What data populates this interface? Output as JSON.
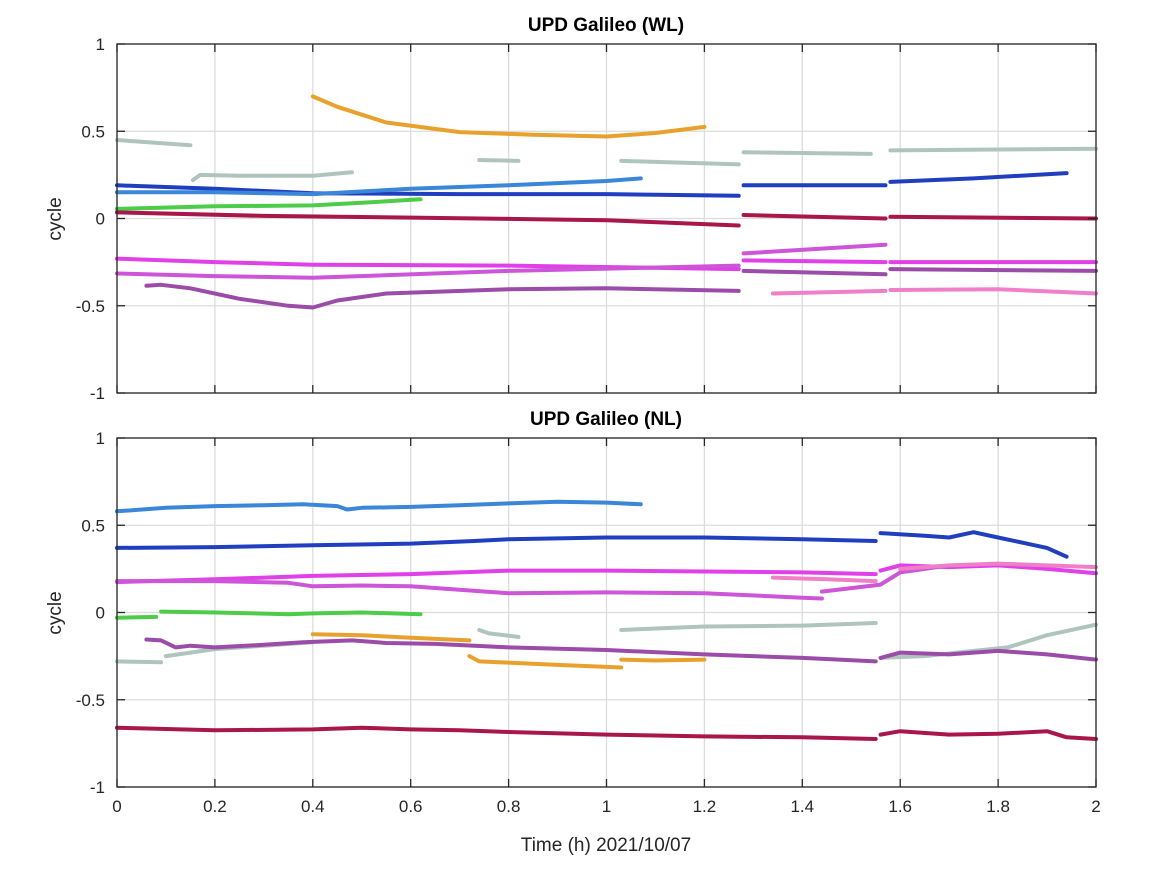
{
  "figure": {
    "xlabel": "Time (h) 2021/10/07"
  },
  "colors": {
    "gray": "#b0c4be",
    "royal_blue": "#1f3fbf",
    "sky_blue": "#3a86d8",
    "green": "#4ccc48",
    "crimson": "#a8164a",
    "magenta": "#e040e8",
    "violet_pink": "#cc55d8",
    "purple": "#9b4ba8",
    "orange": "#e8a12c",
    "pink": "#ef80c8"
  },
  "chart_data": [
    {
      "type": "line",
      "title": "UPD Galileo (WL)",
      "xlabel": "",
      "ylabel": "cycle",
      "xlim": [
        0,
        2
      ],
      "ylim": [
        -1,
        1
      ],
      "xticks": [
        "0",
        "0.2",
        "0.4",
        "0.6",
        "0.8",
        "1",
        "1.2",
        "1.4",
        "1.6",
        "1.8",
        "2"
      ],
      "yticks": [
        "-1",
        "-0.5",
        "0",
        "0.5",
        "1"
      ],
      "grid": true,
      "series": [
        {
          "color": "gray",
          "x": [
            0,
            0.15
          ],
          "y": [
            0.45,
            0.42
          ]
        },
        {
          "color": "gray",
          "x": [
            0.155,
            0.17,
            0.25,
            0.4,
            0.48
          ],
          "y": [
            0.22,
            0.25,
            0.245,
            0.245,
            0.265
          ]
        },
        {
          "color": "gray",
          "x": [
            0.74,
            0.82
          ],
          "y": [
            0.335,
            0.33
          ]
        },
        {
          "color": "gray",
          "x": [
            1.03,
            1.27
          ],
          "y": [
            0.33,
            0.31
          ]
        },
        {
          "color": "gray",
          "x": [
            1.28,
            1.54
          ],
          "y": [
            0.38,
            0.37
          ]
        },
        {
          "color": "gray",
          "x": [
            1.58,
            2.0
          ],
          "y": [
            0.39,
            0.4
          ]
        },
        {
          "color": "royal_blue",
          "x": [
            0,
            0.2,
            0.4,
            0.7,
            1.0,
            1.27
          ],
          "y": [
            0.19,
            0.17,
            0.145,
            0.14,
            0.14,
            0.13
          ]
        },
        {
          "color": "royal_blue",
          "x": [
            1.28,
            1.57
          ],
          "y": [
            0.19,
            0.19
          ]
        },
        {
          "color": "royal_blue",
          "x": [
            1.58,
            1.75,
            1.94
          ],
          "y": [
            0.21,
            0.23,
            0.26
          ]
        },
        {
          "color": "sky_blue",
          "x": [
            0,
            0.2,
            0.4,
            0.6,
            0.8,
            1.0,
            1.07
          ],
          "y": [
            0.15,
            0.15,
            0.14,
            0.17,
            0.19,
            0.215,
            0.23
          ]
        },
        {
          "color": "green",
          "x": [
            0,
            0.2,
            0.4,
            0.5,
            0.62
          ],
          "y": [
            0.055,
            0.07,
            0.075,
            0.09,
            0.11
          ]
        },
        {
          "color": "crimson",
          "x": [
            0,
            0.3,
            0.6,
            1.0,
            1.27
          ],
          "y": [
            0.035,
            0.015,
            0.005,
            -0.01,
            -0.04
          ]
        },
        {
          "color": "crimson",
          "x": [
            1.28,
            1.57
          ],
          "y": [
            0.02,
            0.0
          ]
        },
        {
          "color": "crimson",
          "x": [
            1.58,
            2.0
          ],
          "y": [
            0.01,
            0.0
          ]
        },
        {
          "color": "magenta",
          "x": [
            0,
            0.2,
            0.4,
            0.8,
            1.27
          ],
          "y": [
            -0.23,
            -0.25,
            -0.265,
            -0.27,
            -0.29
          ]
        },
        {
          "color": "magenta",
          "x": [
            1.28,
            1.57
          ],
          "y": [
            -0.24,
            -0.25
          ]
        },
        {
          "color": "magenta",
          "x": [
            1.58,
            2.0
          ],
          "y": [
            -0.25,
            -0.25
          ]
        },
        {
          "color": "violet_pink",
          "x": [
            0,
            0.2,
            0.4,
            0.8,
            1.27
          ],
          "y": [
            -0.315,
            -0.33,
            -0.34,
            -0.3,
            -0.27
          ]
        },
        {
          "color": "violet_pink",
          "x": [
            1.28,
            1.57
          ],
          "y": [
            -0.2,
            -0.15
          ]
        },
        {
          "color": "purple",
          "x": [
            0.06,
            0.09,
            0.15,
            0.25,
            0.35,
            0.4,
            0.45,
            0.55,
            0.8,
            1.0,
            1.27
          ],
          "y": [
            -0.385,
            -0.38,
            -0.4,
            -0.46,
            -0.5,
            -0.51,
            -0.47,
            -0.43,
            -0.405,
            -0.4,
            -0.415
          ]
        },
        {
          "color": "purple",
          "x": [
            1.28,
            1.57
          ],
          "y": [
            -0.3,
            -0.32
          ]
        },
        {
          "color": "purple",
          "x": [
            1.58,
            2.0
          ],
          "y": [
            -0.29,
            -0.3
          ]
        },
        {
          "color": "orange",
          "x": [
            0.4,
            0.45,
            0.55,
            0.7,
            0.85,
            1.0,
            1.1,
            1.2
          ],
          "y": [
            0.7,
            0.64,
            0.55,
            0.495,
            0.48,
            0.47,
            0.49,
            0.525
          ]
        },
        {
          "color": "pink",
          "x": [
            1.34,
            1.57
          ],
          "y": [
            -0.43,
            -0.415
          ]
        },
        {
          "color": "pink",
          "x": [
            1.58,
            1.8,
            2.0
          ],
          "y": [
            -0.41,
            -0.405,
            -0.43
          ]
        }
      ]
    },
    {
      "type": "line",
      "title": "UPD Galileo (NL)",
      "xlabel": "Time (h) 2021/10/07",
      "ylabel": "cycle",
      "xlim": [
        0,
        2
      ],
      "ylim": [
        -1,
        1
      ],
      "xticks": [
        "0",
        "0.2",
        "0.4",
        "0.6",
        "0.8",
        "1",
        "1.2",
        "1.4",
        "1.6",
        "1.8",
        "2"
      ],
      "yticks": [
        "-1",
        "-0.5",
        "0",
        "0.5",
        "1"
      ],
      "grid": true,
      "series": [
        {
          "color": "sky_blue",
          "x": [
            0,
            0.1,
            0.2,
            0.3,
            0.38,
            0.45,
            0.47,
            0.5,
            0.6,
            0.7,
            0.8,
            0.9,
            1.0,
            1.07
          ],
          "y": [
            0.58,
            0.6,
            0.61,
            0.615,
            0.62,
            0.61,
            0.59,
            0.6,
            0.605,
            0.615,
            0.625,
            0.635,
            0.63,
            0.62
          ]
        },
        {
          "color": "royal_blue",
          "x": [
            0,
            0.2,
            0.4,
            0.6,
            0.73,
            0.8,
            1.0,
            1.2,
            1.4,
            1.55
          ],
          "y": [
            0.37,
            0.375,
            0.385,
            0.395,
            0.41,
            0.42,
            0.43,
            0.43,
            0.42,
            0.41
          ]
        },
        {
          "color": "royal_blue",
          "x": [
            1.56,
            1.65,
            1.7,
            1.75,
            1.8,
            1.85,
            1.9,
            1.94
          ],
          "y": [
            0.455,
            0.44,
            0.43,
            0.46,
            0.43,
            0.4,
            0.37,
            0.32
          ]
        },
        {
          "color": "magenta",
          "x": [
            0,
            0.2,
            0.4,
            0.6,
            0.8,
            1.0,
            1.2,
            1.4,
            1.55
          ],
          "y": [
            0.175,
            0.19,
            0.21,
            0.22,
            0.24,
            0.24,
            0.235,
            0.23,
            0.22
          ]
        },
        {
          "color": "magenta",
          "x": [
            1.56,
            1.6,
            1.7,
            1.8,
            1.9,
            2.0
          ],
          "y": [
            0.24,
            0.27,
            0.26,
            0.27,
            0.25,
            0.225
          ]
        },
        {
          "color": "violet_pink",
          "x": [
            0,
            0.2,
            0.35,
            0.4,
            0.5,
            0.6,
            0.7,
            0.8,
            1.0,
            1.2,
            1.4,
            1.44
          ],
          "y": [
            0.18,
            0.18,
            0.17,
            0.15,
            0.155,
            0.15,
            0.13,
            0.11,
            0.115,
            0.11,
            0.085,
            0.08
          ]
        },
        {
          "color": "violet_pink",
          "x": [
            1.44,
            1.5,
            1.56,
            1.6,
            1.7
          ],
          "y": [
            0.12,
            0.14,
            0.16,
            0.23,
            0.27
          ]
        },
        {
          "color": "pink",
          "x": [
            1.34,
            1.45,
            1.55
          ],
          "y": [
            0.2,
            0.19,
            0.18
          ]
        },
        {
          "color": "pink",
          "x": [
            1.6,
            1.7,
            1.8,
            1.9,
            2.0
          ],
          "y": [
            0.25,
            0.27,
            0.28,
            0.27,
            0.26
          ]
        },
        {
          "color": "green",
          "x": [
            0,
            0.08
          ],
          "y": [
            -0.03,
            -0.025
          ]
        },
        {
          "color": "green",
          "x": [
            0.09,
            0.2,
            0.35,
            0.4,
            0.5,
            0.62
          ],
          "y": [
            0.005,
            0.0,
            -0.01,
            -0.005,
            0.0,
            -0.01
          ]
        },
        {
          "color": "gray",
          "x": [
            0,
            0.09
          ],
          "y": [
            -0.28,
            -0.285
          ]
        },
        {
          "color": "gray",
          "x": [
            0.1,
            0.15,
            0.2,
            0.3,
            0.4
          ],
          "y": [
            -0.25,
            -0.23,
            -0.21,
            -0.19,
            -0.17
          ]
        },
        {
          "color": "gray",
          "x": [
            0.74,
            0.76,
            0.82
          ],
          "y": [
            -0.1,
            -0.12,
            -0.14
          ]
        },
        {
          "color": "gray",
          "x": [
            1.03,
            1.2,
            1.4,
            1.55
          ],
          "y": [
            -0.1,
            -0.08,
            -0.075,
            -0.06
          ]
        },
        {
          "color": "gray",
          "x": [
            1.56,
            1.65,
            1.75,
            1.82,
            1.9,
            2.0
          ],
          "y": [
            -0.26,
            -0.25,
            -0.22,
            -0.2,
            -0.13,
            -0.07
          ]
        },
        {
          "color": "purple",
          "x": [
            0.06,
            0.09,
            0.12,
            0.15,
            0.2,
            0.3,
            0.38,
            0.48,
            0.55,
            0.65,
            0.8,
            1.0,
            1.2,
            1.4,
            1.55
          ],
          "y": [
            -0.155,
            -0.16,
            -0.2,
            -0.19,
            -0.2,
            -0.185,
            -0.17,
            -0.16,
            -0.175,
            -0.18,
            -0.2,
            -0.215,
            -0.24,
            -0.26,
            -0.28
          ]
        },
        {
          "color": "purple",
          "x": [
            1.56,
            1.6,
            1.7,
            1.8,
            1.9,
            2.0
          ],
          "y": [
            -0.26,
            -0.23,
            -0.24,
            -0.22,
            -0.24,
            -0.27
          ]
        },
        {
          "color": "orange",
          "x": [
            0.4,
            0.5,
            0.6,
            0.72
          ],
          "y": [
            -0.125,
            -0.13,
            -0.145,
            -0.16
          ]
        },
        {
          "color": "orange",
          "x": [
            0.72,
            0.74,
            0.78,
            0.9,
            1.03
          ],
          "y": [
            -0.25,
            -0.28,
            -0.285,
            -0.3,
            -0.315
          ]
        },
        {
          "color": "orange",
          "x": [
            1.03,
            1.1,
            1.2
          ],
          "y": [
            -0.27,
            -0.275,
            -0.27
          ]
        },
        {
          "color": "crimson",
          "x": [
            0,
            0.2,
            0.4,
            0.5,
            0.6,
            0.7,
            0.8,
            1.0,
            1.2,
            1.4,
            1.55
          ],
          "y": [
            -0.66,
            -0.675,
            -0.67,
            -0.66,
            -0.67,
            -0.675,
            -0.685,
            -0.7,
            -0.71,
            -0.715,
            -0.725
          ]
        },
        {
          "color": "crimson",
          "x": [
            1.56,
            1.6,
            1.7,
            1.8,
            1.9,
            1.94,
            2.0
          ],
          "y": [
            -0.7,
            -0.68,
            -0.7,
            -0.695,
            -0.68,
            -0.715,
            -0.725
          ]
        }
      ]
    }
  ]
}
